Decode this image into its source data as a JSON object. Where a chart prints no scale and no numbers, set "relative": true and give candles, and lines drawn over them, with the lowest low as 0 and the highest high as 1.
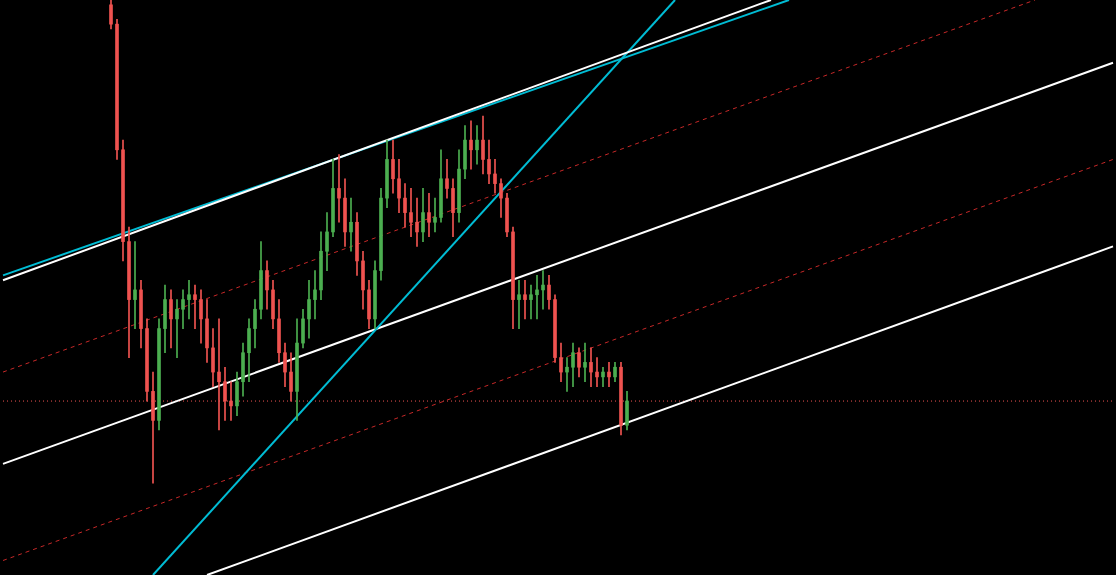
{
  "chart_data": {
    "type": "candlestick",
    "relative": true,
    "legend": false,
    "categories": [
      null,
      null,
      null,
      null,
      null,
      null,
      null,
      null,
      null,
      null,
      null,
      null,
      null,
      null,
      null,
      null,
      null,
      null,
      null,
      null,
      null,
      null,
      null,
      null,
      null,
      null,
      null,
      null,
      null,
      null,
      null,
      null,
      null,
      null,
      null,
      null,
      null,
      null,
      null,
      null,
      null,
      null,
      null,
      null,
      null,
      null,
      null,
      null,
      null,
      null,
      null,
      null,
      null,
      null,
      null,
      null,
      null,
      null,
      null,
      null,
      null,
      null,
      null,
      null,
      null,
      null,
      null,
      null,
      null,
      null,
      null,
      null,
      null,
      null,
      null,
      null,
      null,
      null,
      null,
      null,
      null,
      null,
      null,
      null,
      null,
      null,
      null,
      null,
      null,
      null,
      null,
      null,
      null,
      null,
      null,
      null,
      null,
      null,
      null,
      null,
      null,
      null,
      null,
      null,
      null,
      null,
      null,
      null,
      null,
      null,
      null,
      null,
      null,
      null,
      null,
      null,
      null,
      null,
      null,
      null,
      null,
      null,
      null,
      null,
      null,
      null,
      null,
      null,
      null,
      null,
      null,
      null,
      null,
      null,
      null,
      null,
      null,
      null,
      null,
      null,
      null,
      null,
      null,
      null,
      null,
      null,
      null,
      null,
      null,
      null,
      null,
      null,
      null,
      null,
      null,
      null,
      null,
      null,
      null,
      null,
      null,
      null,
      null,
      null,
      null,
      null,
      null,
      null,
      null,
      null,
      null,
      null,
      null,
      null,
      null,
      null,
      null,
      null,
      null,
      null,
      null,
      null,
      null,
      null,
      null,
      null
    ],
    "ohlc": [
      null,
      null,
      null,
      null,
      null,
      null,
      null,
      null,
      null,
      null,
      null,
      null,
      null,
      null,
      null,
      null,
      null,
      null,
      [
        0.99,
        1,
        0.94,
        0.95
      ],
      [
        0.95,
        0.96,
        0.67,
        0.69
      ],
      [
        0.69,
        0.71,
        0.46,
        0.5
      ],
      [
        0.5,
        0.53,
        0.26,
        0.38
      ],
      [
        0.38,
        0.5,
        0.32,
        0.4
      ],
      [
        0.4,
        0.42,
        0.28,
        0.32
      ],
      [
        0.32,
        0.34,
        0.17,
        0.19
      ],
      [
        0.19,
        0.23,
        0,
        0.13
      ],
      [
        0.13,
        0.34,
        0.11,
        0.32
      ],
      [
        0.32,
        0.41,
        0.27,
        0.38
      ],
      [
        0.38,
        0.4,
        0.28,
        0.34
      ],
      [
        0.34,
        0.38,
        0.26,
        0.36
      ],
      [
        0.36,
        0.4,
        0.32,
        0.38
      ],
      [
        0.38,
        0.42,
        0.34,
        0.39
      ],
      [
        0.39,
        0.41,
        0.32,
        0.38
      ],
      [
        0.38,
        0.4,
        0.29,
        0.34
      ],
      [
        0.34,
        0.38,
        0.25,
        0.28
      ],
      [
        0.28,
        0.32,
        0.2,
        0.23
      ],
      [
        0.23,
        0.34,
        0.11,
        0.21
      ],
      [
        0.21,
        0.24,
        0.13,
        0.17
      ],
      [
        0.17,
        0.21,
        0.13,
        0.16
      ],
      [
        0.16,
        0.23,
        0.14,
        0.21
      ],
      [
        0.21,
        0.29,
        0.18,
        0.27
      ],
      [
        0.27,
        0.34,
        0.21,
        0.32
      ],
      [
        0.32,
        0.38,
        0.28,
        0.36
      ],
      [
        0.36,
        0.5,
        0.34,
        0.44
      ],
      [
        0.44,
        0.46,
        0.36,
        0.4
      ],
      [
        0.4,
        0.42,
        0.32,
        0.34
      ],
      [
        0.34,
        0.38,
        0.25,
        0.27
      ],
      [
        0.27,
        0.29,
        0.2,
        0.23
      ],
      [
        0.23,
        0.27,
        0.17,
        0.19
      ],
      [
        0.19,
        0.34,
        0.13,
        0.29
      ],
      [
        0.29,
        0.36,
        0.28,
        0.34
      ],
      [
        0.34,
        0.42,
        0.3,
        0.38
      ],
      [
        0.38,
        0.44,
        0.34,
        0.4
      ],
      [
        0.4,
        0.52,
        0.38,
        0.48
      ],
      [
        0.48,
        0.56,
        0.44,
        0.52
      ],
      [
        0.52,
        0.67,
        0.51,
        0.61
      ],
      [
        0.61,
        0.68,
        0.54,
        0.59
      ],
      [
        0.59,
        0.63,
        0.49,
        0.52
      ],
      [
        0.52,
        0.59,
        0.48,
        0.54
      ],
      [
        0.54,
        0.56,
        0.43,
        0.46
      ],
      [
        0.46,
        0.48,
        0.36,
        0.4
      ],
      [
        0.4,
        0.42,
        0.32,
        0.34
      ],
      [
        0.34,
        0.46,
        0.32,
        0.44
      ],
      [
        0.44,
        0.61,
        0.42,
        0.59
      ],
      [
        0.59,
        0.71,
        0.57,
        0.67
      ],
      [
        0.67,
        0.71,
        0.6,
        0.63
      ],
      [
        0.63,
        0.67,
        0.56,
        0.59
      ],
      [
        0.59,
        0.62,
        0.53,
        0.56
      ],
      [
        0.56,
        0.61,
        0.51,
        0.54
      ],
      [
        0.54,
        0.59,
        0.49,
        0.52
      ],
      [
        0.52,
        0.61,
        0.5,
        0.56
      ],
      [
        0.56,
        0.6,
        0.51,
        0.54
      ],
      [
        0.54,
        0.59,
        0.52,
        0.55
      ],
      [
        0.55,
        0.69,
        0.54,
        0.63
      ],
      [
        0.63,
        0.67,
        0.59,
        0.61
      ],
      [
        0.61,
        0.63,
        0.51,
        0.56
      ],
      [
        0.56,
        0.69,
        0.54,
        0.65
      ],
      [
        0.65,
        0.74,
        0.63,
        0.71
      ],
      [
        0.71,
        0.75,
        0.65,
        0.69
      ],
      [
        0.69,
        0.74,
        0.66,
        0.71
      ],
      [
        0.71,
        0.76,
        0.64,
        0.67
      ],
      [
        0.67,
        0.71,
        0.62,
        0.64
      ],
      [
        0.64,
        0.67,
        0.6,
        0.62
      ],
      [
        0.62,
        0.63,
        0.55,
        0.59
      ],
      [
        0.59,
        0.6,
        0.51,
        0.52
      ],
      [
        0.52,
        0.53,
        0.32,
        0.38
      ],
      [
        0.38,
        0.42,
        0.32,
        0.39
      ],
      [
        0.39,
        0.42,
        0.34,
        0.38
      ],
      [
        0.38,
        0.41,
        0.34,
        0.39
      ],
      [
        0.39,
        0.43,
        0.34,
        0.4
      ],
      [
        0.4,
        0.44,
        0.36,
        0.41
      ],
      [
        0.41,
        0.43,
        0.36,
        0.38
      ],
      [
        0.38,
        0.39,
        0.25,
        0.26
      ],
      [
        0.26,
        0.29,
        0.21,
        0.23
      ],
      [
        0.23,
        0.26,
        0.19,
        0.24
      ],
      [
        0.24,
        0.29,
        0.2,
        0.27
      ],
      [
        0.27,
        0.28,
        0.22,
        0.24
      ],
      [
        0.24,
        0.29,
        0.21,
        0.25
      ],
      [
        0.25,
        0.28,
        0.2,
        0.23
      ],
      [
        0.23,
        0.26,
        0.2,
        0.22
      ],
      [
        0.22,
        0.24,
        0.2,
        0.23
      ],
      [
        0.23,
        0.25,
        0.2,
        0.22
      ],
      [
        0.22,
        0.25,
        0.21,
        0.24
      ],
      [
        0.24,
        0.25,
        0.1,
        0.12
      ],
      [
        0.12,
        0.19,
        0.11,
        0.17
      ],
      null,
      null,
      null,
      null,
      null,
      null,
      null,
      null,
      null,
      null,
      null,
      null,
      null,
      null,
      null,
      null,
      null,
      null,
      null,
      null,
      null,
      null,
      null,
      null,
      null,
      null,
      null,
      null,
      null,
      null,
      null,
      null,
      null,
      null,
      null,
      null,
      null,
      null,
      null,
      null,
      null,
      null,
      null,
      null,
      null,
      null,
      null,
      null,
      null,
      null,
      null,
      null,
      null,
      null,
      null,
      null,
      null,
      null,
      null,
      null,
      null,
      null,
      null,
      null,
      null,
      null,
      null,
      null,
      null,
      null,
      null,
      null,
      null,
      null,
      null,
      null,
      null,
      null,
      null,
      null,
      null
    ],
    "colors": [
      null,
      null,
      null,
      null,
      null,
      null,
      null,
      null,
      null,
      null,
      null,
      null,
      null,
      null,
      null,
      null,
      null,
      null,
      "#ef5350",
      "#ef5350",
      "#ef5350",
      "#ef5350",
      "#4caf50",
      "#ef5350",
      "#ef5350",
      "#ef5350",
      "#4caf50",
      "#4caf50",
      "#ef5350",
      "#4caf50",
      "#4caf50",
      "#4caf50",
      "#ef5350",
      "#ef5350",
      "#ef5350",
      "#ef5350",
      "#ef5350",
      "#ef5350",
      "#ef5350",
      "#4caf50",
      "#4caf50",
      "#4caf50",
      "#4caf50",
      "#4caf50",
      "#ef5350",
      "#ef5350",
      "#ef5350",
      "#ef5350",
      "#ef5350",
      "#4caf50",
      "#4caf50",
      "#4caf50",
      "#4caf50",
      "#4caf50",
      "#4caf50",
      "#4caf50",
      "#ef5350",
      "#ef5350",
      "#4caf50",
      "#ef5350",
      "#ef5350",
      "#ef5350",
      "#4caf50",
      "#4caf50",
      "#4caf50",
      "#ef5350",
      "#ef5350",
      "#ef5350",
      "#ef5350",
      "#ef5350",
      "#4caf50",
      "#ef5350",
      "#4caf50",
      "#4caf50",
      "#ef5350",
      "#ef5350",
      "#4caf50",
      "#4caf50",
      "#ef5350",
      "#4caf50",
      "#ef5350",
      "#ef5350",
      "#ef5350",
      "#ef5350",
      "#ef5350",
      "#ef5350",
      "#4caf50",
      "#ef5350",
      "#4caf50",
      "#4caf50",
      "#4caf50",
      "#ef5350",
      "#ef5350",
      "#ef5350",
      "#4caf50",
      "#4caf50",
      "#ef5350",
      "#4caf50",
      "#ef5350",
      "#ef5350",
      "#4caf50",
      "#ef5350",
      "#4caf50",
      "#ef5350",
      "#4caf50",
      null,
      null,
      null,
      null,
      null,
      null,
      null,
      null,
      null,
      null,
      null,
      null,
      null,
      null,
      null,
      null,
      null,
      null,
      null,
      null,
      null,
      null,
      null,
      null,
      null,
      null,
      null,
      null,
      null,
      null,
      null,
      null,
      null,
      null,
      null,
      null,
      null,
      null,
      null,
      null,
      null,
      null,
      null,
      null,
      null,
      null,
      null,
      null,
      null,
      null,
      null,
      null,
      null,
      null,
      null,
      null,
      null,
      null,
      null,
      null,
      null,
      null,
      null,
      null,
      null,
      null,
      null,
      null,
      null,
      null,
      null,
      null,
      null,
      null,
      null,
      null,
      null,
      null,
      null,
      null,
      null
    ],
    "series": [
      {
        "type": "line",
        "color": "#ffffff",
        "line_style": "solid",
        "values": [
          0.42,
          null,
          null,
          null,
          null,
          null,
          null,
          null,
          null,
          null,
          null,
          null,
          null,
          null,
          null,
          null,
          null,
          null,
          null,
          null,
          null,
          null,
          null,
          null,
          null,
          null,
          null,
          null,
          null,
          null,
          null,
          null,
          null,
          null,
          null,
          null,
          null,
          null,
          null,
          null,
          null,
          null,
          null,
          null,
          null,
          null,
          null,
          null,
          null,
          null,
          null,
          null,
          null,
          null,
          null,
          null,
          null,
          null,
          null,
          null,
          null,
          null,
          null,
          null,
          null,
          null,
          null,
          null,
          null,
          null,
          null,
          null,
          null,
          null,
          null,
          null,
          null,
          null,
          null,
          null,
          null,
          null,
          null,
          null,
          null,
          null,
          null,
          null,
          null,
          null,
          null,
          null,
          null,
          null,
          null,
          null,
          null,
          null,
          null,
          null,
          null,
          null,
          null,
          null,
          null,
          null,
          null,
          null,
          null,
          null,
          null,
          null,
          null,
          null,
          null,
          null,
          null,
          null,
          null,
          null,
          null,
          null,
          null,
          null,
          null,
          null,
          null,
          null,
          1,
          null,
          null,
          null,
          null,
          null,
          null,
          null,
          null,
          null,
          null,
          null,
          null,
          null,
          null,
          null,
          null,
          null,
          null,
          null,
          null,
          null,
          null,
          null,
          null,
          null,
          null,
          null,
          null,
          null,
          null,
          null,
          null,
          null,
          null,
          null,
          null,
          null,
          null,
          null,
          null,
          null,
          null,
          null,
          null,
          null,
          null,
          null,
          null,
          null,
          null,
          null,
          null,
          null,
          null,
          null,
          null,
          null
        ]
      },
      {
        "type": "line",
        "color": "#00bcd4",
        "line_style": "solid",
        "values": [
          0.43,
          null,
          null,
          null,
          null,
          null,
          null,
          null,
          null,
          null,
          null,
          null,
          null,
          null,
          null,
          null,
          null,
          null,
          null,
          null,
          null,
          null,
          null,
          null,
          null,
          null,
          null,
          null,
          null,
          null,
          null,
          null,
          null,
          null,
          null,
          null,
          null,
          null,
          null,
          null,
          null,
          null,
          null,
          null,
          null,
          null,
          null,
          null,
          null,
          null,
          null,
          null,
          null,
          null,
          null,
          null,
          null,
          null,
          null,
          null,
          null,
          null,
          null,
          null,
          null,
          null,
          null,
          null,
          null,
          null,
          null,
          null,
          null,
          null,
          null,
          null,
          null,
          null,
          null,
          null,
          null,
          null,
          null,
          null,
          null,
          null,
          null,
          null,
          null,
          null,
          null,
          null,
          null,
          null,
          null,
          null,
          null,
          null,
          null,
          null,
          null,
          null,
          null,
          null,
          null,
          null,
          null,
          null,
          null,
          null,
          null,
          null,
          null,
          null,
          null,
          null,
          null,
          null,
          null,
          null,
          null,
          null,
          null,
          null,
          null,
          null,
          null,
          null,
          null,
          null,
          null,
          1,
          null,
          null,
          null,
          null,
          null,
          null,
          null,
          null,
          null,
          null,
          null,
          null,
          null,
          null,
          null,
          null,
          null,
          null,
          null,
          null,
          null,
          null,
          null,
          null,
          null,
          null,
          null,
          null,
          null,
          null,
          null,
          null,
          null,
          null,
          null,
          null,
          null,
          null,
          null,
          null,
          null,
          null,
          null,
          null,
          null,
          null,
          null,
          null,
          null,
          null,
          null,
          null,
          null,
          null
        ]
      },
      {
        "type": "line",
        "color": "#00bcd4",
        "line_style": "solid",
        "values": [
          null,
          null,
          null,
          null,
          null,
          null,
          null,
          null,
          null,
          null,
          null,
          null,
          null,
          null,
          null,
          null,
          null,
          null,
          null,
          null,
          null,
          null,
          null,
          null,
          null,
          -0.19,
          null,
          null,
          null,
          null,
          null,
          null,
          null,
          null,
          null,
          null,
          null,
          null,
          null,
          null,
          null,
          null,
          null,
          null,
          null,
          null,
          null,
          null,
          null,
          null,
          null,
          null,
          null,
          null,
          null,
          null,
          null,
          null,
          null,
          null,
          null,
          null,
          null,
          null,
          null,
          null,
          null,
          null,
          null,
          null,
          null,
          null,
          null,
          null,
          null,
          null,
          null,
          null,
          null,
          null,
          null,
          null,
          null,
          null,
          null,
          null,
          null,
          null,
          null,
          null,
          null,
          null,
          null,
          null,
          null,
          null,
          null,
          null,
          null,
          null,
          null,
          null,
          null,
          null,
          null,
          null,
          null,
          null,
          null,
          null,
          null,
          null,
          1,
          null,
          null,
          null,
          null,
          null,
          null,
          null,
          null,
          null,
          null,
          null,
          null,
          null,
          null,
          null,
          null,
          null,
          null,
          null,
          null,
          null,
          null,
          null,
          null,
          null,
          null,
          null,
          null,
          null,
          null,
          null,
          null,
          null,
          null,
          null,
          null,
          null,
          null,
          null,
          null,
          null,
          null,
          null,
          null,
          null,
          null,
          null,
          null,
          null,
          null,
          null,
          null,
          null,
          null,
          null,
          null,
          null,
          null,
          null,
          null,
          null,
          null,
          null,
          null,
          null,
          null,
          null,
          null,
          null,
          null,
          null,
          null,
          null
        ]
      },
      {
        "type": "line",
        "color": "#ffffff",
        "line_style": "solid",
        "values": [
          0.04,
          null,
          null,
          null,
          null,
          null,
          null,
          null,
          null,
          null,
          null,
          null,
          null,
          null,
          null,
          null,
          null,
          null,
          null,
          null,
          null,
          null,
          null,
          null,
          null,
          null,
          null,
          null,
          null,
          null,
          null,
          null,
          null,
          null,
          null,
          null,
          null,
          null,
          null,
          null,
          null,
          null,
          null,
          null,
          null,
          null,
          null,
          null,
          null,
          null,
          null,
          null,
          null,
          null,
          null,
          null,
          null,
          null,
          null,
          null,
          null,
          null,
          null,
          null,
          null,
          null,
          null,
          null,
          null,
          null,
          null,
          null,
          null,
          null,
          null,
          null,
          null,
          null,
          null,
          null,
          null,
          null,
          null,
          null,
          null,
          null,
          null,
          null,
          null,
          null,
          null,
          null,
          null,
          null,
          null,
          null,
          null,
          null,
          null,
          null,
          null,
          null,
          null,
          null,
          null,
          null,
          null,
          null,
          null,
          null,
          null,
          null,
          null,
          null,
          null,
          null,
          null,
          null,
          null,
          null,
          null,
          null,
          null,
          null,
          null,
          null,
          null,
          null,
          null,
          null,
          null,
          null,
          null,
          null,
          null,
          null,
          null,
          null,
          null,
          null,
          null,
          null,
          null,
          null,
          null,
          null,
          null,
          null,
          null,
          null,
          null,
          null,
          null,
          null,
          null,
          null,
          null,
          null,
          null,
          null,
          null,
          null,
          null,
          null,
          null,
          null,
          null,
          null,
          null,
          null,
          null,
          null,
          null,
          null,
          null,
          null,
          null,
          null,
          null,
          null,
          null,
          null,
          null,
          null,
          null,
          0.87
        ]
      },
      {
        "type": "line",
        "color": "#ffffff",
        "line_style": "solid",
        "values": [
          null,
          null,
          null,
          null,
          null,
          null,
          null,
          null,
          null,
          null,
          null,
          null,
          null,
          null,
          null,
          null,
          null,
          null,
          null,
          null,
          null,
          null,
          null,
          null,
          null,
          null,
          null,
          null,
          null,
          null,
          null,
          null,
          null,
          null,
          -0.19,
          null,
          null,
          null,
          null,
          null,
          null,
          null,
          null,
          null,
          null,
          null,
          null,
          null,
          null,
          null,
          null,
          null,
          null,
          null,
          null,
          null,
          null,
          null,
          null,
          null,
          null,
          null,
          null,
          null,
          null,
          null,
          null,
          null,
          null,
          null,
          null,
          null,
          null,
          null,
          null,
          null,
          null,
          null,
          null,
          null,
          null,
          null,
          null,
          null,
          null,
          null,
          null,
          null,
          null,
          null,
          null,
          null,
          null,
          null,
          null,
          null,
          null,
          null,
          null,
          null,
          null,
          null,
          null,
          null,
          null,
          null,
          null,
          null,
          null,
          null,
          null,
          null,
          null,
          null,
          null,
          null,
          null,
          null,
          null,
          null,
          null,
          null,
          null,
          null,
          null,
          null,
          null,
          null,
          null,
          null,
          null,
          null,
          null,
          null,
          null,
          null,
          null,
          null,
          null,
          null,
          null,
          null,
          null,
          null,
          null,
          null,
          null,
          null,
          null,
          null,
          null,
          null,
          null,
          null,
          null,
          null,
          null,
          null,
          null,
          null,
          null,
          null,
          null,
          null,
          null,
          null,
          null,
          null,
          null,
          null,
          null,
          null,
          null,
          null,
          null,
          null,
          null,
          null,
          null,
          null,
          null,
          null,
          null,
          null,
          null,
          0.49
        ]
      },
      {
        "type": "line",
        "color": "#c62828",
        "line_style": "dashed",
        "values": [
          0.23,
          null,
          null,
          null,
          null,
          null,
          null,
          null,
          null,
          null,
          null,
          null,
          null,
          null,
          null,
          null,
          null,
          null,
          null,
          null,
          null,
          null,
          null,
          null,
          null,
          null,
          null,
          null,
          null,
          null,
          null,
          null,
          null,
          null,
          null,
          null,
          null,
          null,
          null,
          null,
          null,
          null,
          null,
          null,
          null,
          null,
          null,
          null,
          null,
          null,
          null,
          null,
          null,
          null,
          null,
          null,
          null,
          null,
          null,
          null,
          null,
          null,
          null,
          null,
          null,
          null,
          null,
          null,
          null,
          null,
          null,
          null,
          null,
          null,
          null,
          null,
          null,
          null,
          null,
          null,
          null,
          null,
          null,
          null,
          null,
          null,
          null,
          null,
          null,
          null,
          null,
          null,
          null,
          null,
          null,
          null,
          null,
          null,
          null,
          null,
          null,
          null,
          null,
          null,
          null,
          null,
          null,
          null,
          null,
          null,
          null,
          null,
          null,
          null,
          null,
          null,
          null,
          null,
          null,
          null,
          null,
          null,
          null,
          null,
          null,
          null,
          null,
          null,
          null,
          null,
          null,
          null,
          null,
          null,
          null,
          null,
          null,
          null,
          null,
          null,
          null,
          null,
          null,
          null,
          null,
          null,
          null,
          null,
          null,
          null,
          null,
          null,
          null,
          null,
          null,
          null,
          null,
          null,
          null,
          null,
          null,
          null,
          null,
          null,
          null,
          null,
          null,
          null,
          null,
          null,
          null,
          null,
          1,
          null,
          null,
          null,
          null,
          null,
          null,
          null,
          null,
          null,
          null,
          null,
          null,
          null
        ]
      },
      {
        "type": "line",
        "color": "#c62828",
        "line_style": "dashed",
        "values": [
          -0.16,
          null,
          null,
          null,
          null,
          null,
          null,
          null,
          null,
          null,
          null,
          null,
          null,
          null,
          null,
          null,
          null,
          null,
          null,
          null,
          null,
          null,
          null,
          null,
          null,
          null,
          null,
          null,
          null,
          null,
          null,
          null,
          null,
          null,
          null,
          null,
          null,
          null,
          null,
          null,
          null,
          null,
          null,
          null,
          null,
          null,
          null,
          null,
          null,
          null,
          null,
          null,
          null,
          null,
          null,
          null,
          null,
          null,
          null,
          null,
          null,
          null,
          null,
          null,
          null,
          null,
          null,
          null,
          null,
          null,
          null,
          null,
          null,
          null,
          null,
          null,
          null,
          null,
          null,
          null,
          null,
          null,
          null,
          null,
          null,
          null,
          null,
          null,
          null,
          null,
          null,
          null,
          null,
          null,
          null,
          null,
          null,
          null,
          null,
          null,
          null,
          null,
          null,
          null,
          null,
          null,
          null,
          null,
          null,
          null,
          null,
          null,
          null,
          null,
          null,
          null,
          null,
          null,
          null,
          null,
          null,
          null,
          null,
          null,
          null,
          null,
          null,
          null,
          null,
          null,
          null,
          null,
          null,
          null,
          null,
          null,
          null,
          null,
          null,
          null,
          null,
          null,
          null,
          null,
          null,
          null,
          null,
          null,
          null,
          null,
          null,
          null,
          null,
          null,
          null,
          null,
          null,
          null,
          null,
          null,
          null,
          null,
          null,
          null,
          null,
          null,
          null,
          null,
          null,
          null,
          null,
          null,
          null,
          null,
          null,
          null,
          null,
          null,
          null,
          null,
          null,
          null,
          null,
          null,
          null,
          0.67
        ]
      },
      {
        "type": "line",
        "color": "#ef5350",
        "line_style": "dotted",
        "values": [
          0.17,
          null,
          null,
          null,
          null,
          null,
          null,
          null,
          null,
          null,
          null,
          null,
          null,
          null,
          null,
          null,
          null,
          null,
          null,
          null,
          null,
          null,
          null,
          null,
          null,
          null,
          null,
          null,
          null,
          null,
          null,
          null,
          null,
          null,
          null,
          null,
          null,
          null,
          null,
          null,
          null,
          null,
          null,
          null,
          null,
          null,
          null,
          null,
          null,
          null,
          null,
          null,
          null,
          null,
          null,
          null,
          null,
          null,
          null,
          null,
          null,
          null,
          null,
          null,
          null,
          null,
          null,
          null,
          null,
          null,
          null,
          null,
          null,
          null,
          null,
          null,
          null,
          null,
          null,
          null,
          null,
          null,
          null,
          null,
          null,
          null,
          null,
          null,
          null,
          null,
          null,
          null,
          null,
          null,
          null,
          null,
          null,
          null,
          null,
          null,
          null,
          null,
          null,
          null,
          null,
          null,
          null,
          null,
          null,
          null,
          null,
          null,
          null,
          null,
          null,
          null,
          null,
          null,
          null,
          null,
          null,
          null,
          null,
          null,
          null,
          null,
          null,
          null,
          null,
          null,
          null,
          null,
          null,
          null,
          null,
          null,
          null,
          null,
          null,
          null,
          null,
          null,
          null,
          null,
          null,
          null,
          null,
          null,
          null,
          null,
          null,
          null,
          null,
          null,
          null,
          null,
          null,
          null,
          null,
          null,
          null,
          null,
          null,
          null,
          null,
          null,
          null,
          null,
          null,
          null,
          null,
          null,
          null,
          null,
          null,
          null,
          null,
          null,
          null,
          null,
          null,
          null,
          null,
          null,
          null,
          0.17
        ]
      }
    ]
  }
}
